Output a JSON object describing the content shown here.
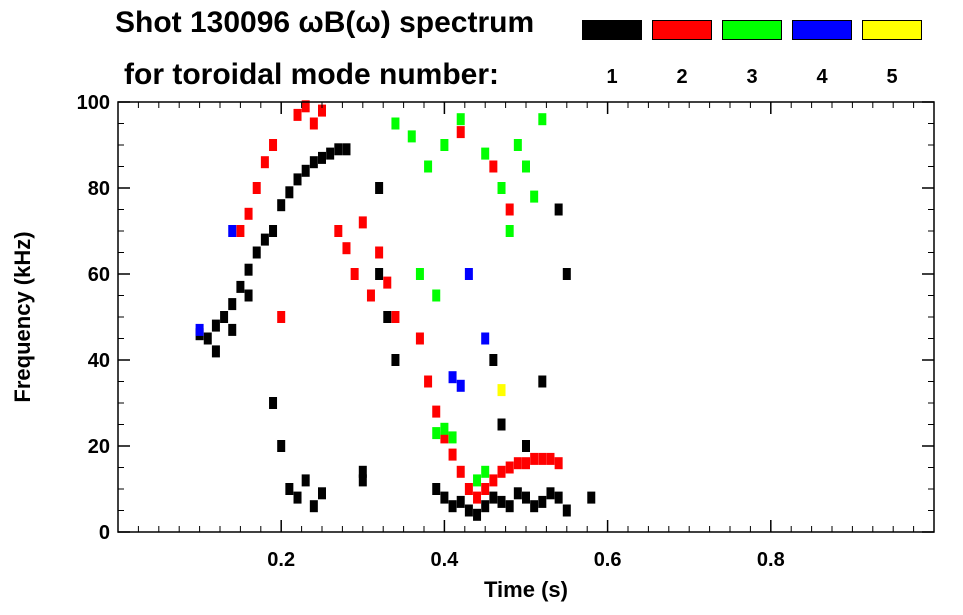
{
  "header": {
    "title_line1": "Shot 130096 ωB(ω) spectrum",
    "title_line2": "for toroidal mode number:"
  },
  "legend": [
    {
      "label": "1",
      "color": "#000000"
    },
    {
      "label": "2",
      "color": "#ff0000"
    },
    {
      "label": "3",
      "color": "#00ff00"
    },
    {
      "label": "4",
      "color": "#0000ff"
    },
    {
      "label": "5",
      "color": "#ffff00"
    }
  ],
  "chart_data": {
    "type": "scatter",
    "title": "Shot 130096 ωB(ω) spectrum for toroidal mode number:",
    "xlabel": "Time (s)",
    "ylabel": "Frequency (kHz)",
    "xlim": [
      0.0,
      1.0
    ],
    "ylim": [
      0,
      100
    ],
    "x_ticks": [
      0.2,
      0.4,
      0.6,
      0.8
    ],
    "x_tick_labels": [
      "0.2",
      "0.4",
      "0.6",
      "0.8"
    ],
    "y_ticks": [
      0,
      20,
      40,
      60,
      80,
      100
    ],
    "y_tick_labels": [
      "0",
      "20",
      "40",
      "60",
      "80",
      "100"
    ],
    "grid": false,
    "legend_position": "top-right",
    "series": [
      {
        "name": "1",
        "color": "#000000",
        "points": [
          [
            0.1,
            46
          ],
          [
            0.11,
            45
          ],
          [
            0.12,
            48
          ],
          [
            0.13,
            50
          ],
          [
            0.14,
            53
          ],
          [
            0.15,
            57
          ],
          [
            0.16,
            61
          ],
          [
            0.17,
            65
          ],
          [
            0.18,
            68
          ],
          [
            0.19,
            70
          ],
          [
            0.2,
            76
          ],
          [
            0.21,
            79
          ],
          [
            0.22,
            82
          ],
          [
            0.23,
            84
          ],
          [
            0.24,
            86
          ],
          [
            0.25,
            87
          ],
          [
            0.26,
            88
          ],
          [
            0.27,
            89
          ],
          [
            0.28,
            89
          ],
          [
            0.12,
            42
          ],
          [
            0.14,
            47
          ],
          [
            0.16,
            55
          ],
          [
            0.21,
            10
          ],
          [
            0.22,
            8
          ],
          [
            0.23,
            12
          ],
          [
            0.24,
            6
          ],
          [
            0.25,
            9
          ],
          [
            0.3,
            14
          ],
          [
            0.3,
            12
          ],
          [
            0.39,
            10
          ],
          [
            0.4,
            8
          ],
          [
            0.41,
            6
          ],
          [
            0.42,
            7
          ],
          [
            0.43,
            5
          ],
          [
            0.44,
            4
          ],
          [
            0.45,
            6
          ],
          [
            0.46,
            8
          ],
          [
            0.47,
            7
          ],
          [
            0.48,
            6
          ],
          [
            0.49,
            9
          ],
          [
            0.5,
            8
          ],
          [
            0.51,
            6
          ],
          [
            0.52,
            7
          ],
          [
            0.53,
            9
          ],
          [
            0.54,
            8
          ],
          [
            0.55,
            5
          ],
          [
            0.58,
            8
          ],
          [
            0.19,
            30
          ],
          [
            0.2,
            20
          ],
          [
            0.32,
            80
          ],
          [
            0.32,
            60
          ],
          [
            0.33,
            50
          ],
          [
            0.34,
            40
          ],
          [
            0.46,
            40
          ],
          [
            0.47,
            25
          ],
          [
            0.5,
            20
          ],
          [
            0.52,
            35
          ],
          [
            0.54,
            75
          ],
          [
            0.55,
            60
          ]
        ]
      },
      {
        "name": "2",
        "color": "#ff0000",
        "points": [
          [
            0.15,
            70
          ],
          [
            0.16,
            74
          ],
          [
            0.17,
            80
          ],
          [
            0.18,
            86
          ],
          [
            0.19,
            90
          ],
          [
            0.22,
            97
          ],
          [
            0.23,
            99
          ],
          [
            0.24,
            95
          ],
          [
            0.25,
            98
          ],
          [
            0.27,
            70
          ],
          [
            0.28,
            66
          ],
          [
            0.29,
            60
          ],
          [
            0.3,
            72
          ],
          [
            0.31,
            55
          ],
          [
            0.32,
            65
          ],
          [
            0.33,
            58
          ],
          [
            0.34,
            50
          ],
          [
            0.37,
            45
          ],
          [
            0.38,
            35
          ],
          [
            0.39,
            28
          ],
          [
            0.4,
            22
          ],
          [
            0.41,
            18
          ],
          [
            0.42,
            14
          ],
          [
            0.43,
            10
          ],
          [
            0.44,
            8
          ],
          [
            0.45,
            10
          ],
          [
            0.46,
            12
          ],
          [
            0.47,
            14
          ],
          [
            0.48,
            15
          ],
          [
            0.49,
            16
          ],
          [
            0.5,
            16
          ],
          [
            0.51,
            17
          ],
          [
            0.52,
            17
          ],
          [
            0.53,
            17
          ],
          [
            0.54,
            16
          ],
          [
            0.46,
            85
          ],
          [
            0.48,
            75
          ],
          [
            0.2,
            50
          ],
          [
            0.42,
            93
          ]
        ]
      },
      {
        "name": "3",
        "color": "#00ff00",
        "points": [
          [
            0.34,
            95
          ],
          [
            0.36,
            92
          ],
          [
            0.38,
            85
          ],
          [
            0.4,
            90
          ],
          [
            0.42,
            96
          ],
          [
            0.45,
            88
          ],
          [
            0.47,
            80
          ],
          [
            0.48,
            70
          ],
          [
            0.49,
            90
          ],
          [
            0.5,
            85
          ],
          [
            0.51,
            78
          ],
          [
            0.52,
            96
          ],
          [
            0.37,
            60
          ],
          [
            0.39,
            55
          ],
          [
            0.39,
            23
          ],
          [
            0.4,
            24
          ],
          [
            0.41,
            22
          ],
          [
            0.44,
            12
          ],
          [
            0.45,
            14
          ]
        ]
      },
      {
        "name": "4",
        "color": "#0000ff",
        "points": [
          [
            0.1,
            47
          ],
          [
            0.14,
            70
          ],
          [
            0.41,
            36
          ],
          [
            0.42,
            34
          ],
          [
            0.43,
            60
          ],
          [
            0.45,
            45
          ]
        ]
      },
      {
        "name": "5",
        "color": "#ffff00",
        "points": [
          [
            0.47,
            33
          ]
        ]
      }
    ]
  }
}
